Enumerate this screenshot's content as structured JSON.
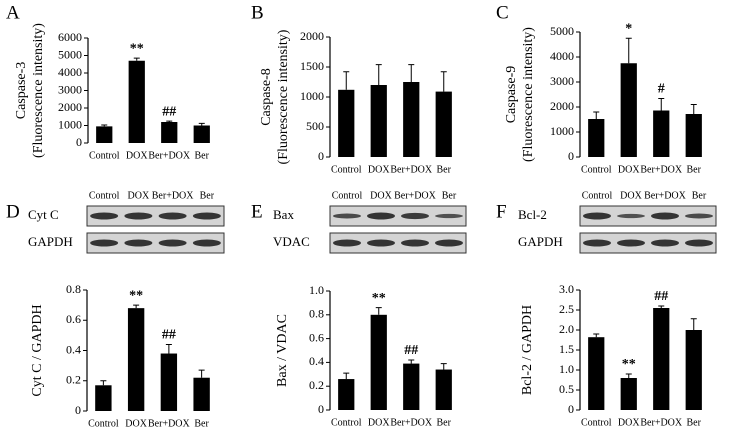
{
  "chart_data": [
    {
      "type": "bar",
      "panel": "A",
      "ylabel": [
        "Caspase-3",
        "(Fluorescence intensity)"
      ],
      "categories": [
        "Control",
        "DOX",
        "Ber+DOX",
        "Ber"
      ],
      "values": [
        950,
        4700,
        1200,
        1000
      ],
      "errors": [
        80,
        150,
        50,
        120
      ],
      "annotations": [
        null,
        "**",
        "##",
        null
      ],
      "color": "#000000",
      "ylim": [
        0,
        6000
      ],
      "yticks": [
        0,
        1000,
        2000,
        3000,
        4000,
        5000,
        6000
      ]
    },
    {
      "type": "bar",
      "panel": "B",
      "ylabel": [
        "Caspase-8",
        "(Fluorescence intensity)"
      ],
      "categories": [
        "Control",
        "DOX",
        "Ber+DOX",
        "Ber"
      ],
      "values": [
        1120,
        1200,
        1250,
        1090
      ],
      "errors": [
        300,
        340,
        290,
        330
      ],
      "annotations": [
        null,
        null,
        null,
        null
      ],
      "color": "#000000",
      "ylim": [
        0,
        2000
      ],
      "yticks": [
        0,
        500,
        1000,
        1500,
        2000
      ]
    },
    {
      "type": "bar",
      "panel": "C",
      "ylabel": [
        "Caspase-9",
        "(Fluorescence intensity)"
      ],
      "categories": [
        "Control",
        "DOX",
        "Ber+DOX",
        "Ber"
      ],
      "values": [
        1520,
        3750,
        1860,
        1720
      ],
      "errors": [
        280,
        1000,
        480,
        380
      ],
      "annotations": [
        null,
        "*",
        "#",
        null
      ],
      "color": "#000000",
      "ylim": [
        0,
        5000
      ],
      "yticks": [
        0,
        1000,
        2000,
        3000,
        4000,
        5000
      ]
    },
    {
      "type": "bar",
      "panel": "D",
      "ylabel": [
        "Cyt C / GAPDH"
      ],
      "blot_labels": [
        "Cyt C",
        "GAPDH"
      ],
      "categories": [
        "Control",
        "DOX",
        "Ber+DOX",
        "Ber"
      ],
      "values": [
        0.17,
        0.68,
        0.38,
        0.22
      ],
      "errors": [
        0.03,
        0.02,
        0.06,
        0.05
      ],
      "annotations": [
        null,
        "**",
        "##",
        null
      ],
      "color": "#000000",
      "ylim": [
        0,
        0.8
      ],
      "yticks": [
        0,
        0.2,
        0.4,
        0.6,
        0.8
      ]
    },
    {
      "type": "bar",
      "panel": "E",
      "ylabel": [
        "Bax / VDAC"
      ],
      "blot_labels": [
        "Bax",
        "VDAC"
      ],
      "categories": [
        "Control",
        "DOX",
        "Ber+DOX",
        "Ber"
      ],
      "values": [
        0.26,
        0.8,
        0.39,
        0.34
      ],
      "errors": [
        0.05,
        0.06,
        0.03,
        0.05
      ],
      "annotations": [
        null,
        "**",
        "##",
        null
      ],
      "color": "#000000",
      "ylim": [
        0,
        1
      ],
      "yticks": [
        0,
        0.2,
        0.4,
        0.6,
        0.8,
        {
          "value": 1,
          "label": "1.0"
        }
      ]
    },
    {
      "type": "bar",
      "panel": "F",
      "ylabel": [
        "Bcl-2 / GAPDH"
      ],
      "blot_labels": [
        "Bcl-2",
        "GAPDH"
      ],
      "categories": [
        "Control",
        "DOX",
        "Ber+DOX",
        "Ber"
      ],
      "values": [
        1.82,
        0.8,
        2.55,
        2.0
      ],
      "errors": [
        0.08,
        0.1,
        0.05,
        0.28
      ],
      "annotations": [
        null,
        "**",
        "##",
        null
      ],
      "color": "#000000",
      "ylim": [
        0,
        3
      ],
      "yticks": [
        0,
        0.5,
        {
          "value": 1,
          "label": "1.0"
        },
        1.5,
        {
          "value": 2,
          "label": "2.0"
        },
        2.5,
        {
          "value": 3,
          "label": "3.0"
        }
      ]
    }
  ]
}
